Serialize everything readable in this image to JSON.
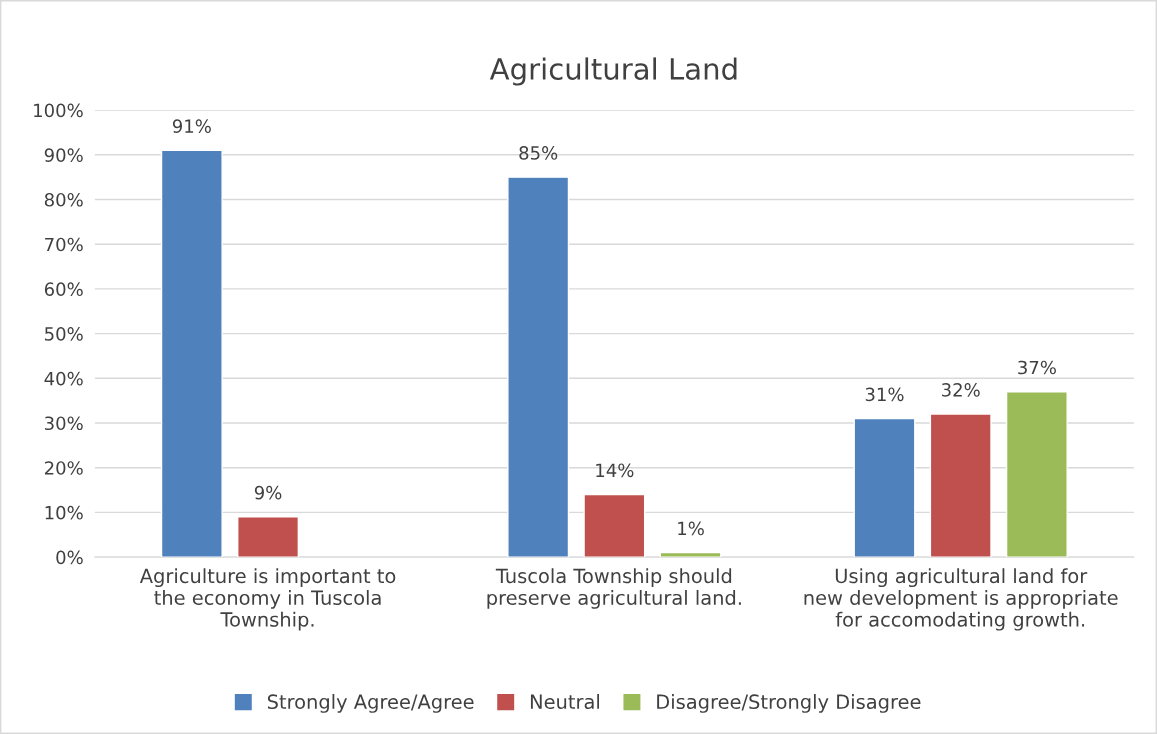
{
  "chart_data": {
    "type": "bar",
    "title": "Agricultural Land",
    "categories": [
      "Agriculture is important to the economy in Tuscola Township.",
      "Tuscola Township should preserve agricultural land.",
      "Using agricultural land for new development is appropriate for accomodating growth."
    ],
    "series": [
      {
        "name": "Strongly Agree/Agree",
        "color": "#4f81bd",
        "values": [
          91,
          85,
          31
        ],
        "value_labels": [
          "91%",
          "85%",
          "31%"
        ]
      },
      {
        "name": "Neutral",
        "color": "#c0504d",
        "values": [
          9,
          14,
          32
        ],
        "value_labels": [
          "9%",
          "14%",
          "32%"
        ]
      },
      {
        "name": "Disagree/Strongly Disagree",
        "color": "#9bbb59",
        "values": [
          null,
          1,
          37
        ],
        "value_labels": [
          null,
          "1%",
          "37%"
        ]
      }
    ],
    "ylim": [
      0,
      100
    ],
    "yticks": [
      {
        "value": 0,
        "label": "0%"
      },
      {
        "value": 10,
        "label": "10%"
      },
      {
        "value": 20,
        "label": "20%"
      },
      {
        "value": 30,
        "label": "30%"
      },
      {
        "value": 40,
        "label": "40%"
      },
      {
        "value": 50,
        "label": "50%"
      },
      {
        "value": 60,
        "label": "60%"
      },
      {
        "value": 70,
        "label": "70%"
      },
      {
        "value": 80,
        "label": "80%"
      },
      {
        "value": 90,
        "label": "90%"
      },
      {
        "value": 100,
        "label": "100%"
      }
    ],
    "grid": "y",
    "legend": "bottom"
  }
}
